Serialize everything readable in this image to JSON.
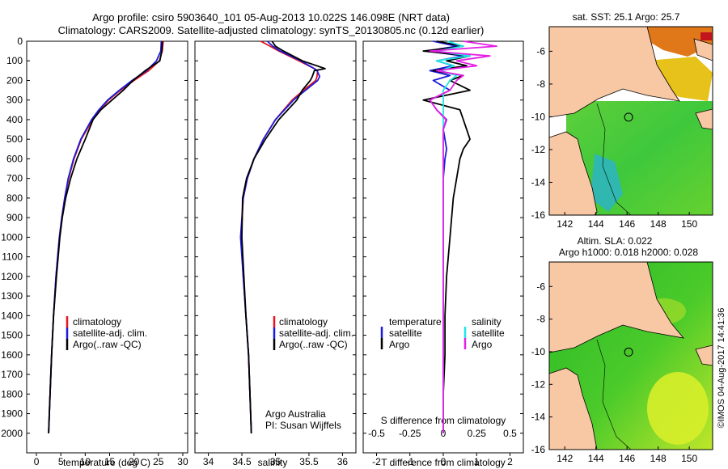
{
  "header": {
    "title_line1": "Argo profile: csiro 5903640_101 05-Aug-2013 10.022S 146.098E (NRT data)",
    "title_line2": "Climatology: CARS2009. Satellite-adjusted climatology: synTS_20130805.nc (0.12d earlier)"
  },
  "colors": {
    "climatology": "#e8141c",
    "satellite": "#1a1adc",
    "argo": "#000000",
    "cyan": "#20e6e6",
    "magenta": "#e61ee6",
    "land": "#f7c8a3"
  },
  "chart_data": [
    {
      "id": "temperature",
      "type": "line",
      "xlabel": "temperature (deg C)",
      "ylabel": "",
      "xlim": [
        -2,
        31
      ],
      "ylim": [
        2100,
        0
      ],
      "xticks": [
        "0",
        "5",
        "10",
        "15",
        "20",
        "25",
        "30"
      ],
      "yticks": [
        "0",
        "100",
        "200",
        "300",
        "400",
        "500",
        "600",
        "700",
        "800",
        "900",
        "1000",
        "1100",
        "1200",
        "1300",
        "1400",
        "1500",
        "1600",
        "1700",
        "1800",
        "1900",
        "2000"
      ],
      "depth": [
        0,
        50,
        100,
        150,
        200,
        250,
        300,
        350,
        400,
        500,
        600,
        700,
        800,
        900,
        1000,
        1200,
        1400,
        1600,
        1800,
        2000
      ],
      "series": [
        {
          "name": "climatology",
          "values": [
            26.0,
            25.8,
            25.2,
            23.0,
            20.0,
            17.2,
            14.8,
            13.0,
            11.5,
            9.2,
            7.7,
            6.6,
            5.8,
            5.2,
            4.7,
            4.0,
            3.5,
            3.1,
            2.8,
            2.5
          ]
        },
        {
          "name": "satellite-adj. clim.",
          "values": [
            25.6,
            25.5,
            24.6,
            22.6,
            19.6,
            17.0,
            14.6,
            12.8,
            11.3,
            9.1,
            7.6,
            6.5,
            5.8,
            5.2,
            4.7,
            4.0,
            3.5,
            3.1,
            2.8,
            2.5
          ]
        },
        {
          "name": "Argo(..raw -QC)",
          "values": [
            25.8,
            25.7,
            25.3,
            22.3,
            19.8,
            17.8,
            15.5,
            13.2,
            11.6,
            10.0,
            8.3,
            7.0,
            6.0,
            5.3,
            4.8,
            4.1,
            3.5,
            3.1,
            2.8,
            2.5
          ]
        }
      ],
      "legend": [
        "climatology",
        "satellite-adj. clim.",
        "Argo(..raw -QC)"
      ]
    },
    {
      "id": "salinity",
      "type": "line",
      "xlabel": "salinity",
      "xlim": [
        33.8,
        36.2
      ],
      "ylim": [
        2100,
        0
      ],
      "xticks": [
        "34",
        "34.5",
        "35",
        "35.5",
        "36"
      ],
      "depth": [
        0,
        25,
        50,
        100,
        140,
        150,
        180,
        200,
        250,
        300,
        400,
        500,
        600,
        700,
        800,
        1000,
        1200,
        1400,
        1600,
        1800,
        2000
      ],
      "series": [
        {
          "name": "climatology",
          "values": [
            34.78,
            34.92,
            35.05,
            35.35,
            35.58,
            35.63,
            35.62,
            35.6,
            35.42,
            35.25,
            35.0,
            34.82,
            34.68,
            34.58,
            34.52,
            34.49,
            34.52,
            34.56,
            34.6,
            34.62,
            34.64
          ]
        },
        {
          "name": "satellite-adj. clim.",
          "values": [
            34.88,
            34.96,
            35.07,
            35.38,
            35.58,
            35.62,
            35.66,
            35.63,
            35.45,
            35.27,
            35.0,
            34.82,
            34.68,
            34.58,
            34.52,
            34.48,
            34.52,
            34.56,
            34.6,
            34.62,
            34.64
          ]
        },
        {
          "name": "Argo(..raw -QC)",
          "values": [
            34.95,
            35.0,
            35.12,
            35.4,
            35.74,
            35.58,
            35.55,
            35.52,
            35.4,
            35.32,
            35.05,
            34.85,
            34.68,
            34.57,
            34.51,
            34.5,
            34.53,
            34.56,
            34.6,
            34.62,
            34.64
          ]
        }
      ],
      "legend": [
        "climatology",
        "satellite-adj. clim.",
        "Argo(..raw -QC)"
      ],
      "annotation": [
        "Argo Australia",
        "PI: Susan Wijffels"
      ]
    },
    {
      "id": "differences",
      "type": "line",
      "xlabel_bottom": "T difference from climatology",
      "xlabel_top": "S difference from climatology",
      "t_xlim": [
        -2.4,
        2.4
      ],
      "t_xticks": [
        "-2",
        "-1",
        "0",
        "1",
        "2"
      ],
      "s_xlim": [
        -0.6,
        0.6
      ],
      "s_xticks": [
        "-0.5",
        "-0.25",
        "0",
        "0.25",
        "0.5"
      ],
      "ylim": [
        2100,
        0
      ],
      "depth": [
        0,
        25,
        50,
        75,
        100,
        125,
        150,
        175,
        200,
        250,
        300,
        350,
        400,
        450,
        500,
        550,
        600,
        700,
        800,
        1000,
        1200,
        1400,
        1600,
        1800,
        2000
      ],
      "series": [
        {
          "name": "temperature satellite",
          "values": [
            -0.3,
            0.4,
            -0.5,
            0.6,
            -0.2,
            0.3,
            -0.4,
            0.2,
            -0.3,
            0.2,
            -0.4,
            -0.2,
            0.1,
            0.0,
            0.05,
            0.1,
            0.05,
            0.0,
            0.0,
            0.0,
            0.0,
            0.0,
            0.0,
            0.0,
            0.0
          ]
        },
        {
          "name": "temperature Argo",
          "values": [
            -0.2,
            0.6,
            -0.6,
            0.8,
            0.1,
            0.7,
            -0.3,
            0.6,
            0.2,
            0.8,
            -0.6,
            0.5,
            0.6,
            0.7,
            0.8,
            0.6,
            0.5,
            0.4,
            0.3,
            0.2,
            0.1,
            0.05,
            0.05,
            0.0,
            0.0
          ]
        },
        {
          "name": "salinity satellite",
          "values": [
            0.03,
            0.15,
            -0.05,
            0.2,
            -0.05,
            0.08,
            -0.02,
            0.1,
            0.05,
            0.0,
            0.0,
            0.0,
            0.0,
            0.0,
            0.0,
            0.0,
            0.0,
            0.0,
            0.0,
            0.0,
            0.0,
            0.0,
            0.0,
            0.0,
            0.0
          ]
        },
        {
          "name": "salinity Argo",
          "values": [
            0.15,
            0.4,
            -0.1,
            0.35,
            0.1,
            0.25,
            -0.05,
            0.15,
            0.1,
            0.05,
            -0.1,
            -0.05,
            0.02,
            0.0,
            0.0,
            0.0,
            0.0,
            0.0,
            0.0,
            0.0,
            0.0,
            0.0,
            0.0,
            0.0,
            0.0
          ]
        }
      ],
      "legend_temperature": {
        "title": "temperature",
        "items": [
          "satellite",
          "Argo"
        ]
      },
      "legend_salinity": {
        "title": "salinity",
        "items": [
          "satellite",
          "Argo"
        ]
      }
    },
    {
      "id": "sst_map",
      "type": "heatmap",
      "title": "sat. SST: 25.1  Argo: 25.7",
      "xticks": [
        "142",
        "144",
        "146",
        "148",
        "150"
      ],
      "yticks": [
        "-6",
        "-8",
        "-10",
        "-12",
        "-14",
        "-16"
      ],
      "xlim": [
        141,
        151.5
      ],
      "ylim": [
        -16,
        -4.5
      ],
      "float_position": [
        146.098,
        -10.022
      ]
    },
    {
      "id": "sla_map",
      "type": "heatmap",
      "title_line1": "Altim. SLA: 0.022",
      "title_line2": "Argo h1000: 0.018  h2000: 0.028",
      "xticks": [
        "142",
        "144",
        "146",
        "148",
        "150"
      ],
      "yticks": [
        "-6",
        "-8",
        "-10",
        "-12",
        "-14",
        "-16"
      ],
      "xlim": [
        141,
        151.5
      ],
      "ylim": [
        -16,
        -4.5
      ],
      "float_position": [
        146.098,
        -10.022
      ]
    }
  ],
  "footer": {
    "credit": "©IMOS 04-Aug-2017 14:41:36"
  }
}
